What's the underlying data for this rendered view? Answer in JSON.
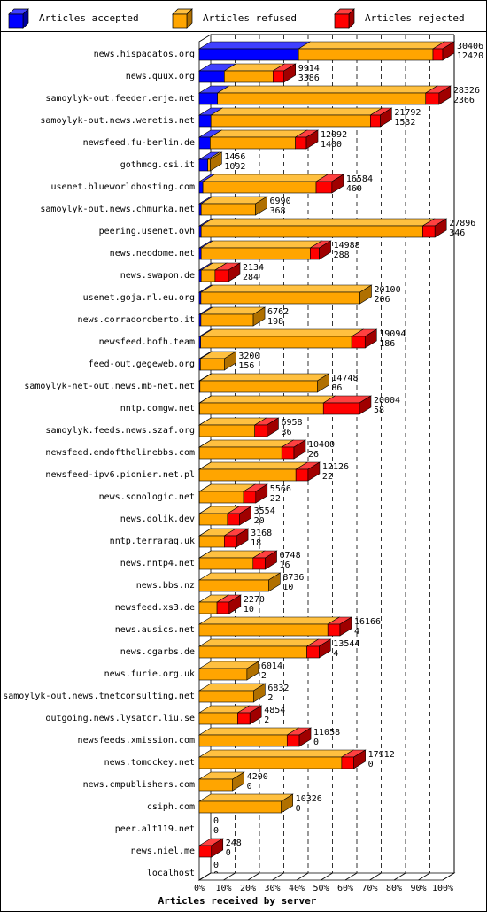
{
  "chart_data": {
    "type": "bar",
    "orientation": "horizontal",
    "stacked": true,
    "xlabel": "Articles received by server",
    "x_ticks": [
      "0%",
      "10%",
      "20%",
      "30%",
      "40%",
      "50%",
      "60%",
      "70%",
      "80%",
      "90%",
      "100%"
    ],
    "legend": [
      {
        "name": "Articles accepted",
        "color": "#0000ff",
        "side": "#0000a0",
        "top": "#4040ff"
      },
      {
        "name": "Articles refused",
        "color": "#ffa500",
        "side": "#b07000",
        "top": "#ffc040"
      },
      {
        "name": "Articles rejected",
        "color": "#ff0000",
        "side": "#a00000",
        "top": "#ff4040"
      }
    ],
    "legend_position": "top",
    "grid": "vertical-dashed",
    "rows": [
      {
        "label": "news.hispagatos.org",
        "total": "30406",
        "accepted_label": "12420",
        "accepted": 0.408,
        "refused": 0.552,
        "rejected": 0.04
      },
      {
        "label": "news.quux.org",
        "total": "9914",
        "accepted_label": "3386",
        "accepted": 0.103,
        "refused": 0.2,
        "rejected": 0.045
      },
      {
        "label": "samoylyk-out.feeder.erje.net",
        "total": "28326",
        "accepted_label": "2366",
        "accepted": 0.075,
        "refused": 0.855,
        "rejected": 0.055
      },
      {
        "label": "samoylyk-out.news.weretis.net",
        "total": "21792",
        "accepted_label": "1532",
        "accepted": 0.048,
        "refused": 0.655,
        "rejected": 0.04
      },
      {
        "label": "newsfeed.fu-berlin.de",
        "total": "12092",
        "accepted_label": "1400",
        "accepted": 0.045,
        "refused": 0.35,
        "rejected": 0.045
      },
      {
        "label": "gothmog.csi.it",
        "total": "1456",
        "accepted_label": "1092",
        "accepted": 0.035,
        "refused": 0.01,
        "rejected": 0
      },
      {
        "label": "usenet.blueworldhosting.com",
        "total": "16584",
        "accepted_label": "460",
        "accepted": 0.015,
        "refused": 0.465,
        "rejected": 0.065
      },
      {
        "label": "samoylyk-out.news.chmurka.net",
        "total": "6990",
        "accepted_label": "368",
        "accepted": 0.008,
        "refused": 0.223,
        "rejected": 0
      },
      {
        "label": "peering.usenet.ovh",
        "total": "27896",
        "accepted_label": "346",
        "accepted": 0.008,
        "refused": 0.91,
        "rejected": 0.05
      },
      {
        "label": "news.neodome.net",
        "total": "14988",
        "accepted_label": "288",
        "accepted": 0.008,
        "refused": 0.448,
        "rejected": 0.037
      },
      {
        "label": "news.swapon.de",
        "total": "2134",
        "accepted_label": "284",
        "accepted": 0.008,
        "refused": 0.057,
        "rejected": 0.055
      },
      {
        "label": "usenet.goja.nl.eu.org",
        "total": "20100",
        "accepted_label": "206",
        "accepted": 0.007,
        "refused": 0.653,
        "rejected": 0
      },
      {
        "label": "news.corradoroberto.it",
        "total": "6762",
        "accepted_label": "198",
        "accepted": 0.007,
        "refused": 0.215,
        "rejected": 0
      },
      {
        "label": "newsfeed.bofh.team",
        "total": "19094",
        "accepted_label": "186",
        "accepted": 0.006,
        "refused": 0.62,
        "rejected": 0.055
      },
      {
        "label": "feed-out.gegeweb.org",
        "total": "3200",
        "accepted_label": "156",
        "accepted": 0.005,
        "refused": 0.098,
        "rejected": 0
      },
      {
        "label": "samoylyk-net-out.news.mb-net.net",
        "total": "14748",
        "accepted_label": "86",
        "accepted": 0.003,
        "refused": 0.482,
        "rejected": 0
      },
      {
        "label": "nntp.comgw.net",
        "total": "20004",
        "accepted_label": "58",
        "accepted": 0.002,
        "refused": 0.508,
        "rejected": 0.148
      },
      {
        "label": "samoylyk.feeds.news.szaf.org",
        "total": "6958",
        "accepted_label": "36",
        "accepted": 0.001,
        "refused": 0.227,
        "rejected": 0.05
      },
      {
        "label": "newsfeed.endofthelinebbs.com",
        "total": "10400",
        "accepted_label": "26",
        "accepted": 0.001,
        "refused": 0.338,
        "rejected": 0.05
      },
      {
        "label": "newsfeed-ipv6.pionier.net.pl",
        "total": "12126",
        "accepted_label": "22",
        "accepted": 0.001,
        "refused": 0.396,
        "rejected": 0.05
      },
      {
        "label": "news.sonologic.net",
        "total": "5566",
        "accepted_label": "22",
        "accepted": 0.001,
        "refused": 0.181,
        "rejected": 0.05
      },
      {
        "label": "news.dolik.dev",
        "total": "3554",
        "accepted_label": "20",
        "accepted": 0.001,
        "refused": 0.115,
        "rejected": 0.05
      },
      {
        "label": "nntp.terraraq.uk",
        "total": "3168",
        "accepted_label": "18",
        "accepted": 0.001,
        "refused": 0.102,
        "rejected": 0.05
      },
      {
        "label": "news.nntp4.net",
        "total": "6748",
        "accepted_label": "16",
        "accepted": 0.001,
        "refused": 0.22,
        "rejected": 0.05
      },
      {
        "label": "news.bbs.nz",
        "total": "8736",
        "accepted_label": "10",
        "accepted": 0.0,
        "refused": 0.285,
        "rejected": 0
      },
      {
        "label": "newsfeed.xs3.de",
        "total": "2270",
        "accepted_label": "10",
        "accepted": 0.0,
        "refused": 0.073,
        "rejected": 0.05
      },
      {
        "label": "news.ausics.net",
        "total": "16166",
        "accepted_label": "4",
        "accepted": 0.0,
        "refused": 0.528,
        "rejected": 0.05
      },
      {
        "label": "news.cgarbs.de",
        "total": "13544",
        "accepted_label": "4",
        "accepted": 0.0,
        "refused": 0.442,
        "rejected": 0.05
      },
      {
        "label": "news.furie.org.uk",
        "total": "6014",
        "accepted_label": "2",
        "accepted": 0.0,
        "refused": 0.196,
        "rejected": 0
      },
      {
        "label": "samoylyk-out.news.tnetconsulting.net",
        "total": "6832",
        "accepted_label": "2",
        "accepted": 0.0,
        "refused": 0.223,
        "rejected": 0
      },
      {
        "label": "outgoing.news.lysator.liu.se",
        "total": "4854",
        "accepted_label": "2",
        "accepted": 0.0,
        "refused": 0.158,
        "rejected": 0.05
      },
      {
        "label": "newsfeeds.xmission.com",
        "total": "11058",
        "accepted_label": "0",
        "accepted": 0,
        "refused": 0.361,
        "rejected": 0.05
      },
      {
        "label": "news.tomockey.net",
        "total": "17912",
        "accepted_label": "0",
        "accepted": 0,
        "refused": 0.585,
        "rejected": 0.05
      },
      {
        "label": "news.cmpublishers.com",
        "total": "4200",
        "accepted_label": "0",
        "accepted": 0,
        "refused": 0.137,
        "rejected": 0
      },
      {
        "label": "csiph.com",
        "total": "10326",
        "accepted_label": "0",
        "accepted": 0,
        "refused": 0.337,
        "rejected": 0
      },
      {
        "label": "peer.alt119.net",
        "total": "0",
        "accepted_label": "0",
        "accepted": 0,
        "refused": 0,
        "rejected": 0
      },
      {
        "label": "news.niel.me",
        "total": "248",
        "accepted_label": "0",
        "accepted": 0,
        "refused": 0,
        "rejected": 0.05
      },
      {
        "label": "localhost",
        "total": "0",
        "accepted_label": "0",
        "accepted": 0,
        "refused": 0,
        "rejected": 0
      }
    ]
  }
}
